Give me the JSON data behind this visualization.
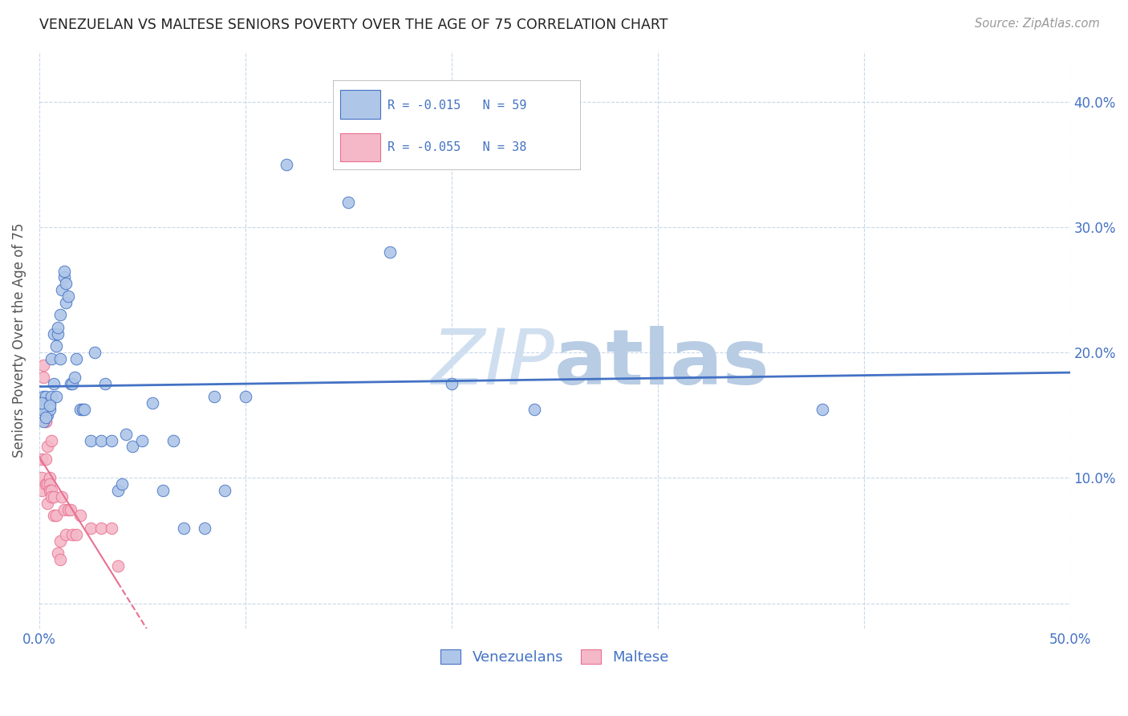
{
  "title": "VENEZUELAN VS MALTESE SENIORS POVERTY OVER THE AGE OF 75 CORRELATION CHART",
  "source": "Source: ZipAtlas.com",
  "ylabel": "Seniors Poverty Over the Age of 75",
  "xlim": [
    0.0,
    0.5
  ],
  "ylim": [
    -0.02,
    0.44
  ],
  "xticks": [
    0.0,
    0.1,
    0.2,
    0.3,
    0.4,
    0.5
  ],
  "yticks": [
    0.0,
    0.1,
    0.2,
    0.3,
    0.4
  ],
  "ytick_labels_left": [
    "",
    "",
    "",
    "",
    ""
  ],
  "ytick_labels_right": [
    "",
    "10.0%",
    "20.0%",
    "30.0%",
    "40.0%"
  ],
  "xtick_labels": [
    "0.0%",
    "",
    "",
    "",
    "",
    "50.0%"
  ],
  "background_color": "#ffffff",
  "grid_color": "#c8d8ea",
  "venezuelan_color": "#aec6e8",
  "maltese_color": "#f4b8c8",
  "venezuelan_line_color": "#4472c4",
  "maltese_line_color": "#e87090",
  "venezuelan_r": -0.015,
  "venezuelan_n": 59,
  "maltese_r": -0.055,
  "maltese_n": 38,
  "legend_color": "#4472c4",
  "venezuelan_x": [
    0.002,
    0.003,
    0.003,
    0.004,
    0.004,
    0.005,
    0.005,
    0.006,
    0.006,
    0.007,
    0.007,
    0.008,
    0.008,
    0.009,
    0.009,
    0.01,
    0.01,
    0.011,
    0.012,
    0.012,
    0.013,
    0.013,
    0.014,
    0.015,
    0.016,
    0.017,
    0.018,
    0.02,
    0.021,
    0.022,
    0.025,
    0.027,
    0.03,
    0.032,
    0.035,
    0.038,
    0.04,
    0.042,
    0.045,
    0.05,
    0.055,
    0.06,
    0.065,
    0.07,
    0.08,
    0.085,
    0.09,
    0.1,
    0.12,
    0.15,
    0.17,
    0.2,
    0.24,
    0.38,
    0.001,
    0.001,
    0.002,
    0.003,
    0.005
  ],
  "venezuelan_y": [
    0.165,
    0.155,
    0.165,
    0.15,
    0.16,
    0.16,
    0.155,
    0.195,
    0.165,
    0.175,
    0.215,
    0.165,
    0.205,
    0.215,
    0.22,
    0.23,
    0.195,
    0.25,
    0.26,
    0.265,
    0.255,
    0.24,
    0.245,
    0.175,
    0.175,
    0.18,
    0.195,
    0.155,
    0.155,
    0.155,
    0.13,
    0.2,
    0.13,
    0.175,
    0.13,
    0.09,
    0.095,
    0.135,
    0.125,
    0.13,
    0.16,
    0.09,
    0.13,
    0.06,
    0.06,
    0.165,
    0.09,
    0.165,
    0.35,
    0.32,
    0.28,
    0.175,
    0.155,
    0.155,
    0.155,
    0.16,
    0.145,
    0.148,
    0.158
  ],
  "maltese_x": [
    0.001,
    0.001,
    0.001,
    0.002,
    0.002,
    0.002,
    0.002,
    0.003,
    0.003,
    0.003,
    0.003,
    0.004,
    0.004,
    0.004,
    0.005,
    0.005,
    0.005,
    0.006,
    0.006,
    0.006,
    0.007,
    0.007,
    0.008,
    0.009,
    0.01,
    0.01,
    0.011,
    0.012,
    0.013,
    0.014,
    0.015,
    0.016,
    0.018,
    0.02,
    0.025,
    0.03,
    0.035,
    0.038
  ],
  "maltese_y": [
    0.115,
    0.1,
    0.09,
    0.155,
    0.155,
    0.18,
    0.19,
    0.145,
    0.145,
    0.115,
    0.095,
    0.095,
    0.08,
    0.125,
    0.1,
    0.095,
    0.09,
    0.09,
    0.085,
    0.13,
    0.085,
    0.07,
    0.07,
    0.04,
    0.05,
    0.035,
    0.085,
    0.075,
    0.055,
    0.075,
    0.075,
    0.055,
    0.055,
    0.07,
    0.06,
    0.06,
    0.06,
    0.03
  ],
  "watermark_color": "#cfdff0",
  "marker_size": 110
}
